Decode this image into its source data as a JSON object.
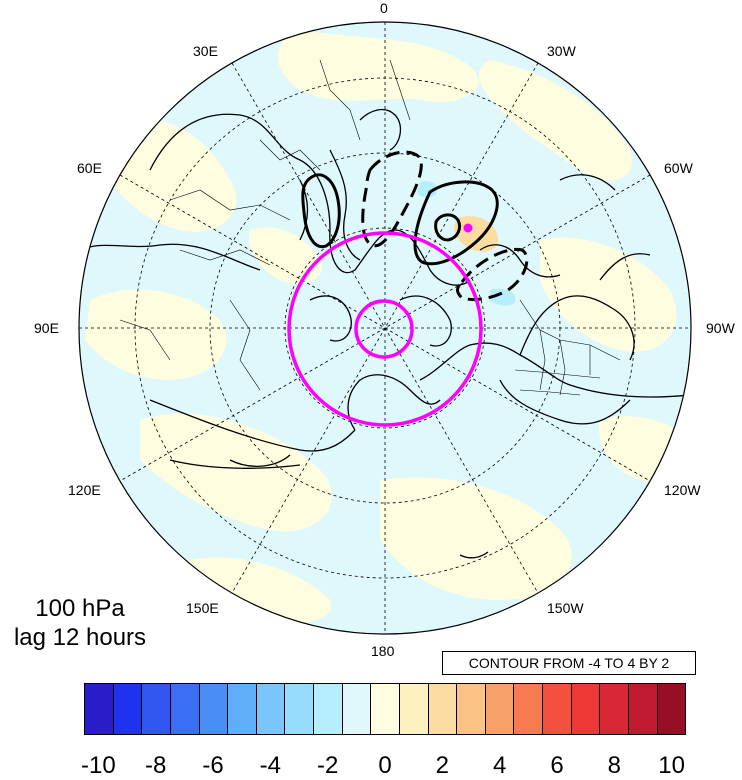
{
  "panel": {
    "level": "100 hPa",
    "lag": "lag 12 hours"
  },
  "contour_info": "CONTOUR FROM -4 TO 4 BY 2",
  "longitude_labels": {
    "l0": "0",
    "l30w": "30W",
    "l60w": "60W",
    "l90w": "90W",
    "l120w": "120W",
    "l150w": "150W",
    "l180": "180",
    "l150e": "150E",
    "l120e": "120E",
    "l90e": "90E",
    "l60e": "60E",
    "l30e": "30E"
  },
  "colorbar": {
    "tick_labels": [
      "-10",
      "-8",
      "-6",
      "-4",
      "-2",
      "0",
      "2",
      "4",
      "6",
      "8",
      "10"
    ],
    "colors": [
      "#2a1cc9",
      "#1e32f0",
      "#3256f0",
      "#3a6ef5",
      "#4a8ef5",
      "#60aef7",
      "#7ac6fa",
      "#96dcfc",
      "#b6eefc",
      "#def8fc",
      "#fefde0",
      "#fdf1c0",
      "#fcdca0",
      "#fac284",
      "#f8a06a",
      "#f67a52",
      "#f45040",
      "#ee3838",
      "#d82836",
      "#c01a30",
      "#960f24"
    ]
  },
  "colors": {
    "highlight": "#ff00ff",
    "background_cyan": "#def8fc",
    "background_yellow": "#fefde0"
  }
}
